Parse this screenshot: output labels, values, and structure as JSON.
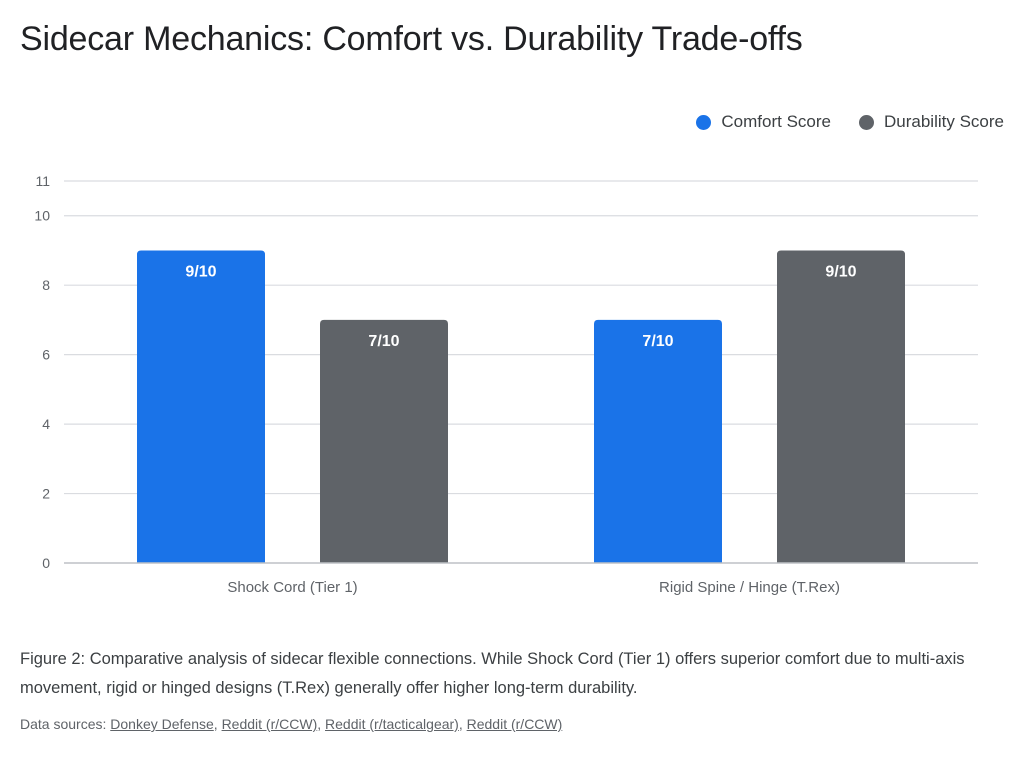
{
  "title": "Sidecar Mechanics: Comfort vs. Durability Trade-offs",
  "legend": [
    {
      "label": "Comfort Score",
      "color": "#1a73e8"
    },
    {
      "label": "Durability Score",
      "color": "#5f6368"
    }
  ],
  "chart_data": {
    "type": "bar",
    "title": "Sidecar Mechanics: Comfort vs. Durability Trade-offs",
    "xlabel": "",
    "ylabel": "",
    "categories": [
      "Shock Cord (Tier 1)",
      "Rigid Spine / Hinge (T.Rex)"
    ],
    "series": [
      {
        "name": "Comfort Score",
        "color": "#1a73e8",
        "values": [
          9,
          7
        ],
        "labels": [
          "9/10",
          "7/10"
        ]
      },
      {
        "name": "Durability Score",
        "color": "#5f6368",
        "values": [
          7,
          9
        ],
        "labels": [
          "7/10",
          "9/10"
        ]
      }
    ],
    "ylim": [
      0,
      11
    ],
    "yticks": [
      0,
      2,
      4,
      6,
      8,
      10,
      11
    ],
    "grid": true,
    "legend_position": "top-right"
  },
  "caption": "Figure 2: Comparative analysis of sidecar flexible connections. While Shock Cord (Tier 1) offers superior comfort due to multi-axis movement, rigid or hinged designs (T.Rex) generally offer higher long-term durability.",
  "sources": {
    "prefix": "Data sources: ",
    "links": [
      "Donkey Defense",
      "Reddit (r/CCW)",
      "Reddit (r/tacticalgear)",
      "Reddit (r/CCW)"
    ]
  }
}
